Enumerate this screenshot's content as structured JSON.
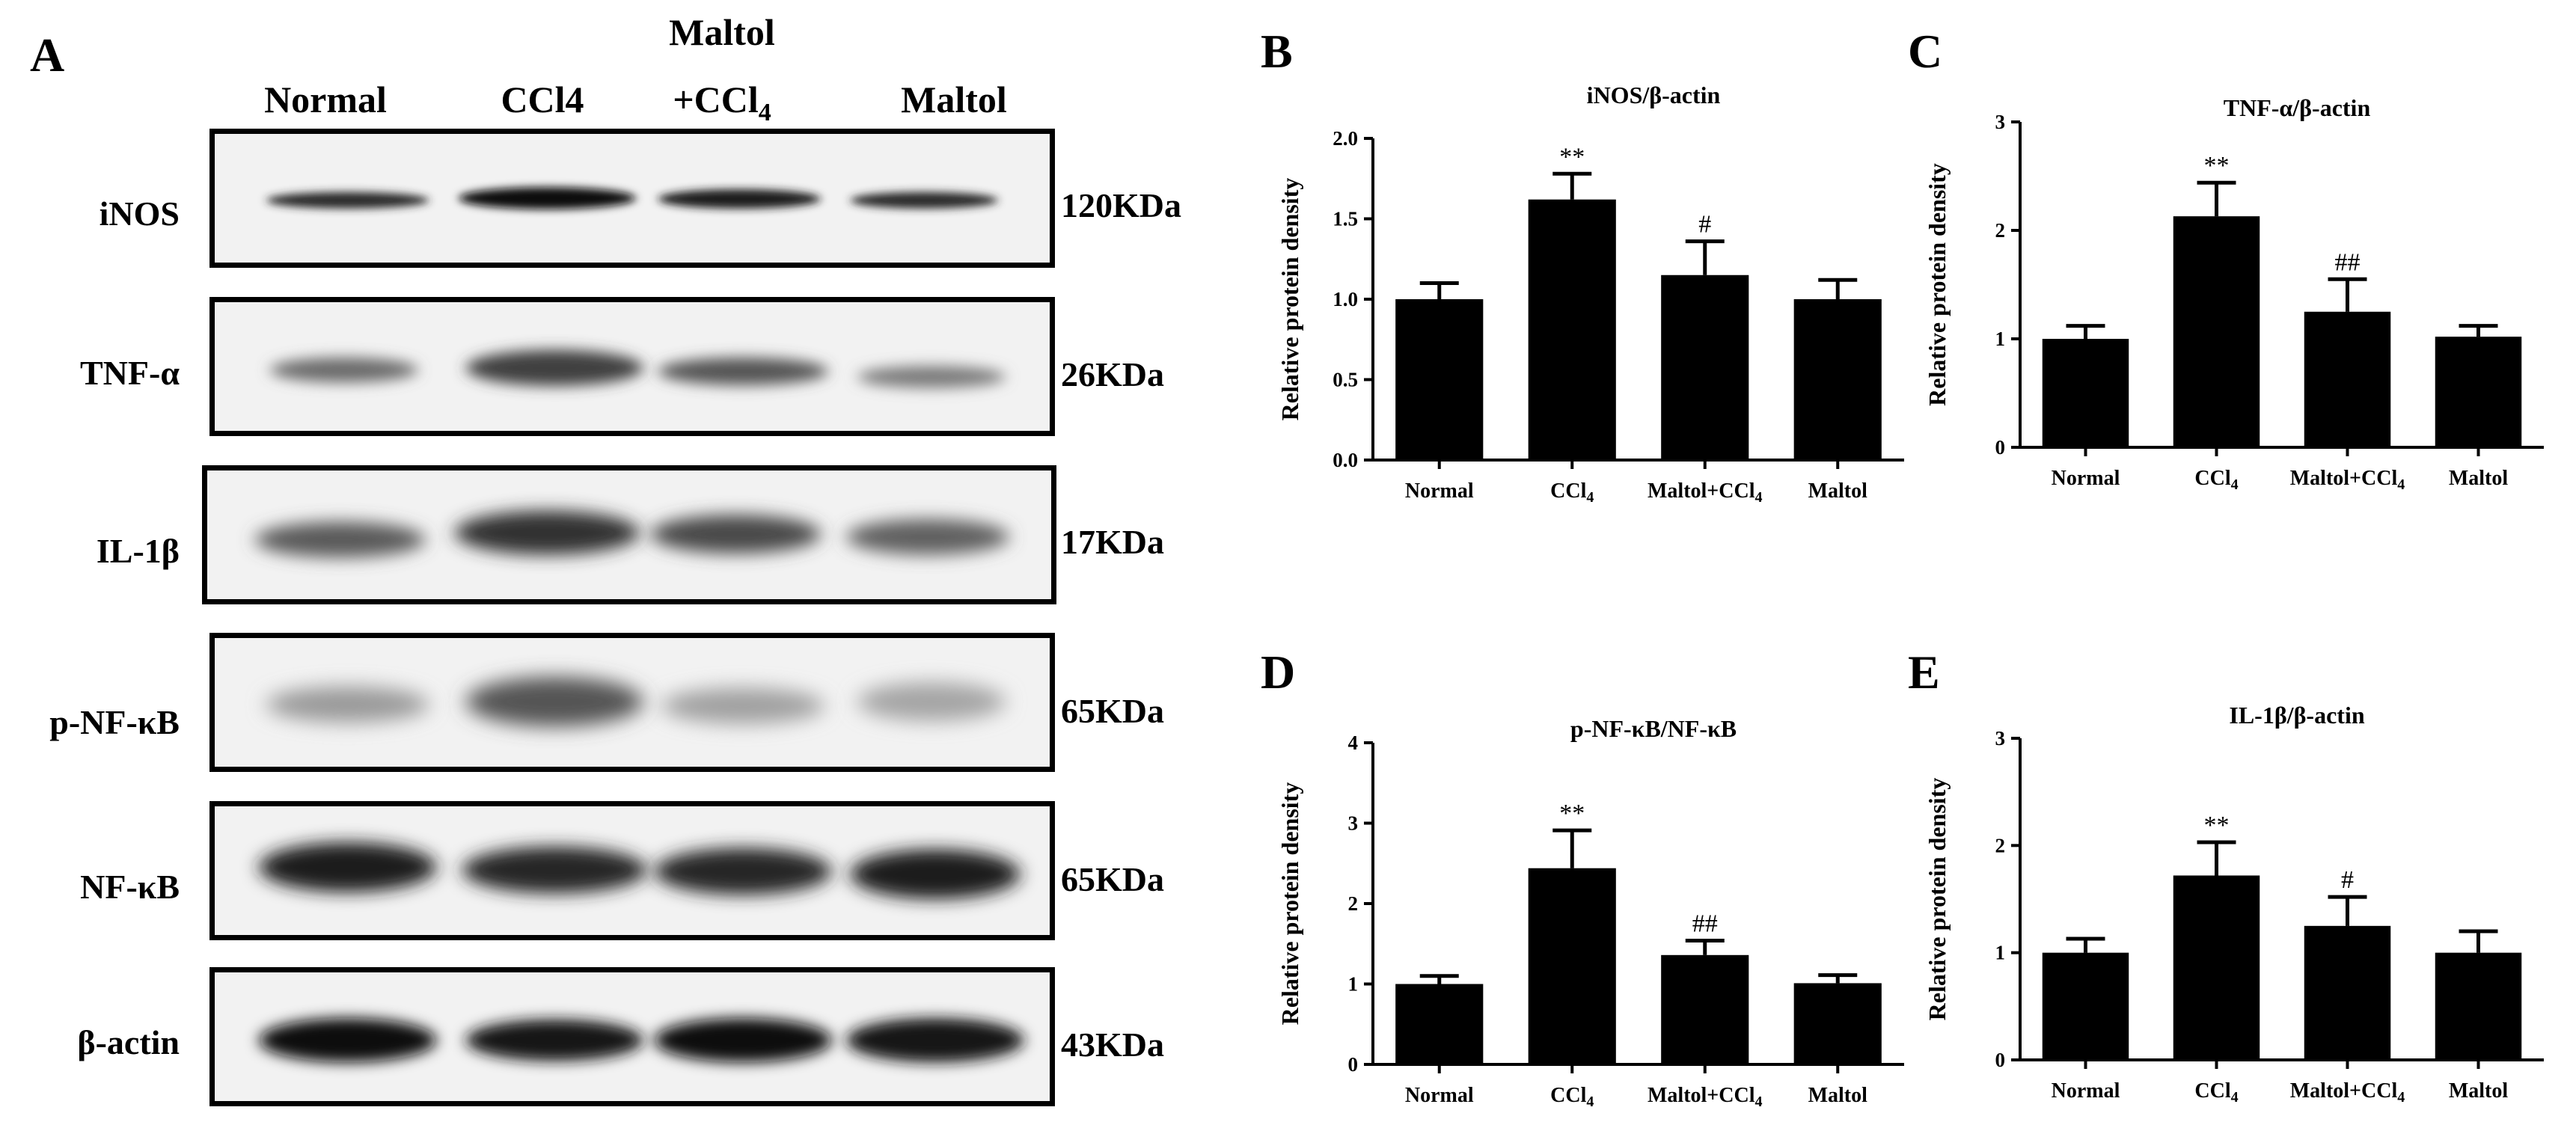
{
  "western_blot": {
    "panel_letter": "A",
    "header_top": "Maltol",
    "lanes": [
      "Normal",
      "CCl4",
      "+CCl",
      "Maltol"
    ],
    "lane3_subscript": "4",
    "proteins": [
      {
        "name": "iNOS",
        "kda": "120KDa"
      },
      {
        "name": "TNF-α",
        "kda": "26KDa"
      },
      {
        "name": "IL-1β",
        "kda": "17KDa"
      },
      {
        "name": "p-NF-κB",
        "kda": "65KDa"
      },
      {
        "name": "NF-κB",
        "kda": "65KDa"
      },
      {
        "name": "β-actin",
        "kda": "43KDa"
      }
    ]
  },
  "chart_data": [
    {
      "panel": "B",
      "type": "bar",
      "title": "iNOS/β-actin",
      "ylabel": "Relative protein density",
      "categories": [
        "Normal",
        "CCl4",
        "Maltol+CCl4",
        "Maltol"
      ],
      "values": [
        1.0,
        1.62,
        1.15,
        1.0
      ],
      "errors": [
        0.1,
        0.16,
        0.21,
        0.12
      ],
      "significance": [
        "",
        "**",
        "#",
        ""
      ],
      "ylim": [
        0,
        2.0
      ],
      "yticks": [
        "0.0",
        "0.5",
        "1.0",
        "1.5",
        "2.0"
      ],
      "bar_color": "#000000"
    },
    {
      "panel": "C",
      "type": "bar",
      "title": "TNF-α/β-actin",
      "ylabel": "Relative protein density",
      "categories": [
        "Normal",
        "CCl4",
        "Maltol+CCl4",
        "Maltol"
      ],
      "values": [
        1.0,
        2.13,
        1.25,
        1.02
      ],
      "errors": [
        0.12,
        0.31,
        0.3,
        0.1
      ],
      "significance": [
        "",
        "**",
        "##",
        ""
      ],
      "ylim": [
        0,
        3
      ],
      "yticks": [
        "0",
        "1",
        "2",
        "3"
      ],
      "bar_color": "#000000"
    },
    {
      "panel": "D",
      "type": "bar",
      "title": "p-NF-κB/NF-κB",
      "ylabel": "Relative protein density",
      "categories": [
        "Normal",
        "CCl4",
        "Maltol+CCl4",
        "Maltol"
      ],
      "values": [
        1.0,
        2.44,
        1.36,
        1.01
      ],
      "errors": [
        0.1,
        0.47,
        0.18,
        0.1
      ],
      "significance": [
        "",
        "**",
        "##",
        ""
      ],
      "ylim": [
        0,
        4
      ],
      "yticks": [
        "0",
        "1",
        "2",
        "3",
        "4"
      ],
      "bar_color": "#000000"
    },
    {
      "panel": "E",
      "type": "bar",
      "title": "IL-1β/β-actin",
      "ylabel": "Relative protein density",
      "categories": [
        "Normal",
        "CCl4",
        "Maltol+CCl4",
        "Maltol"
      ],
      "values": [
        1.0,
        1.72,
        1.25,
        1.0
      ],
      "errors": [
        0.13,
        0.31,
        0.27,
        0.2
      ],
      "significance": [
        "",
        "**",
        "#",
        ""
      ],
      "ylim": [
        0,
        3
      ],
      "yticks": [
        "0",
        "1",
        "2",
        "3"
      ],
      "bar_color": "#000000"
    }
  ]
}
